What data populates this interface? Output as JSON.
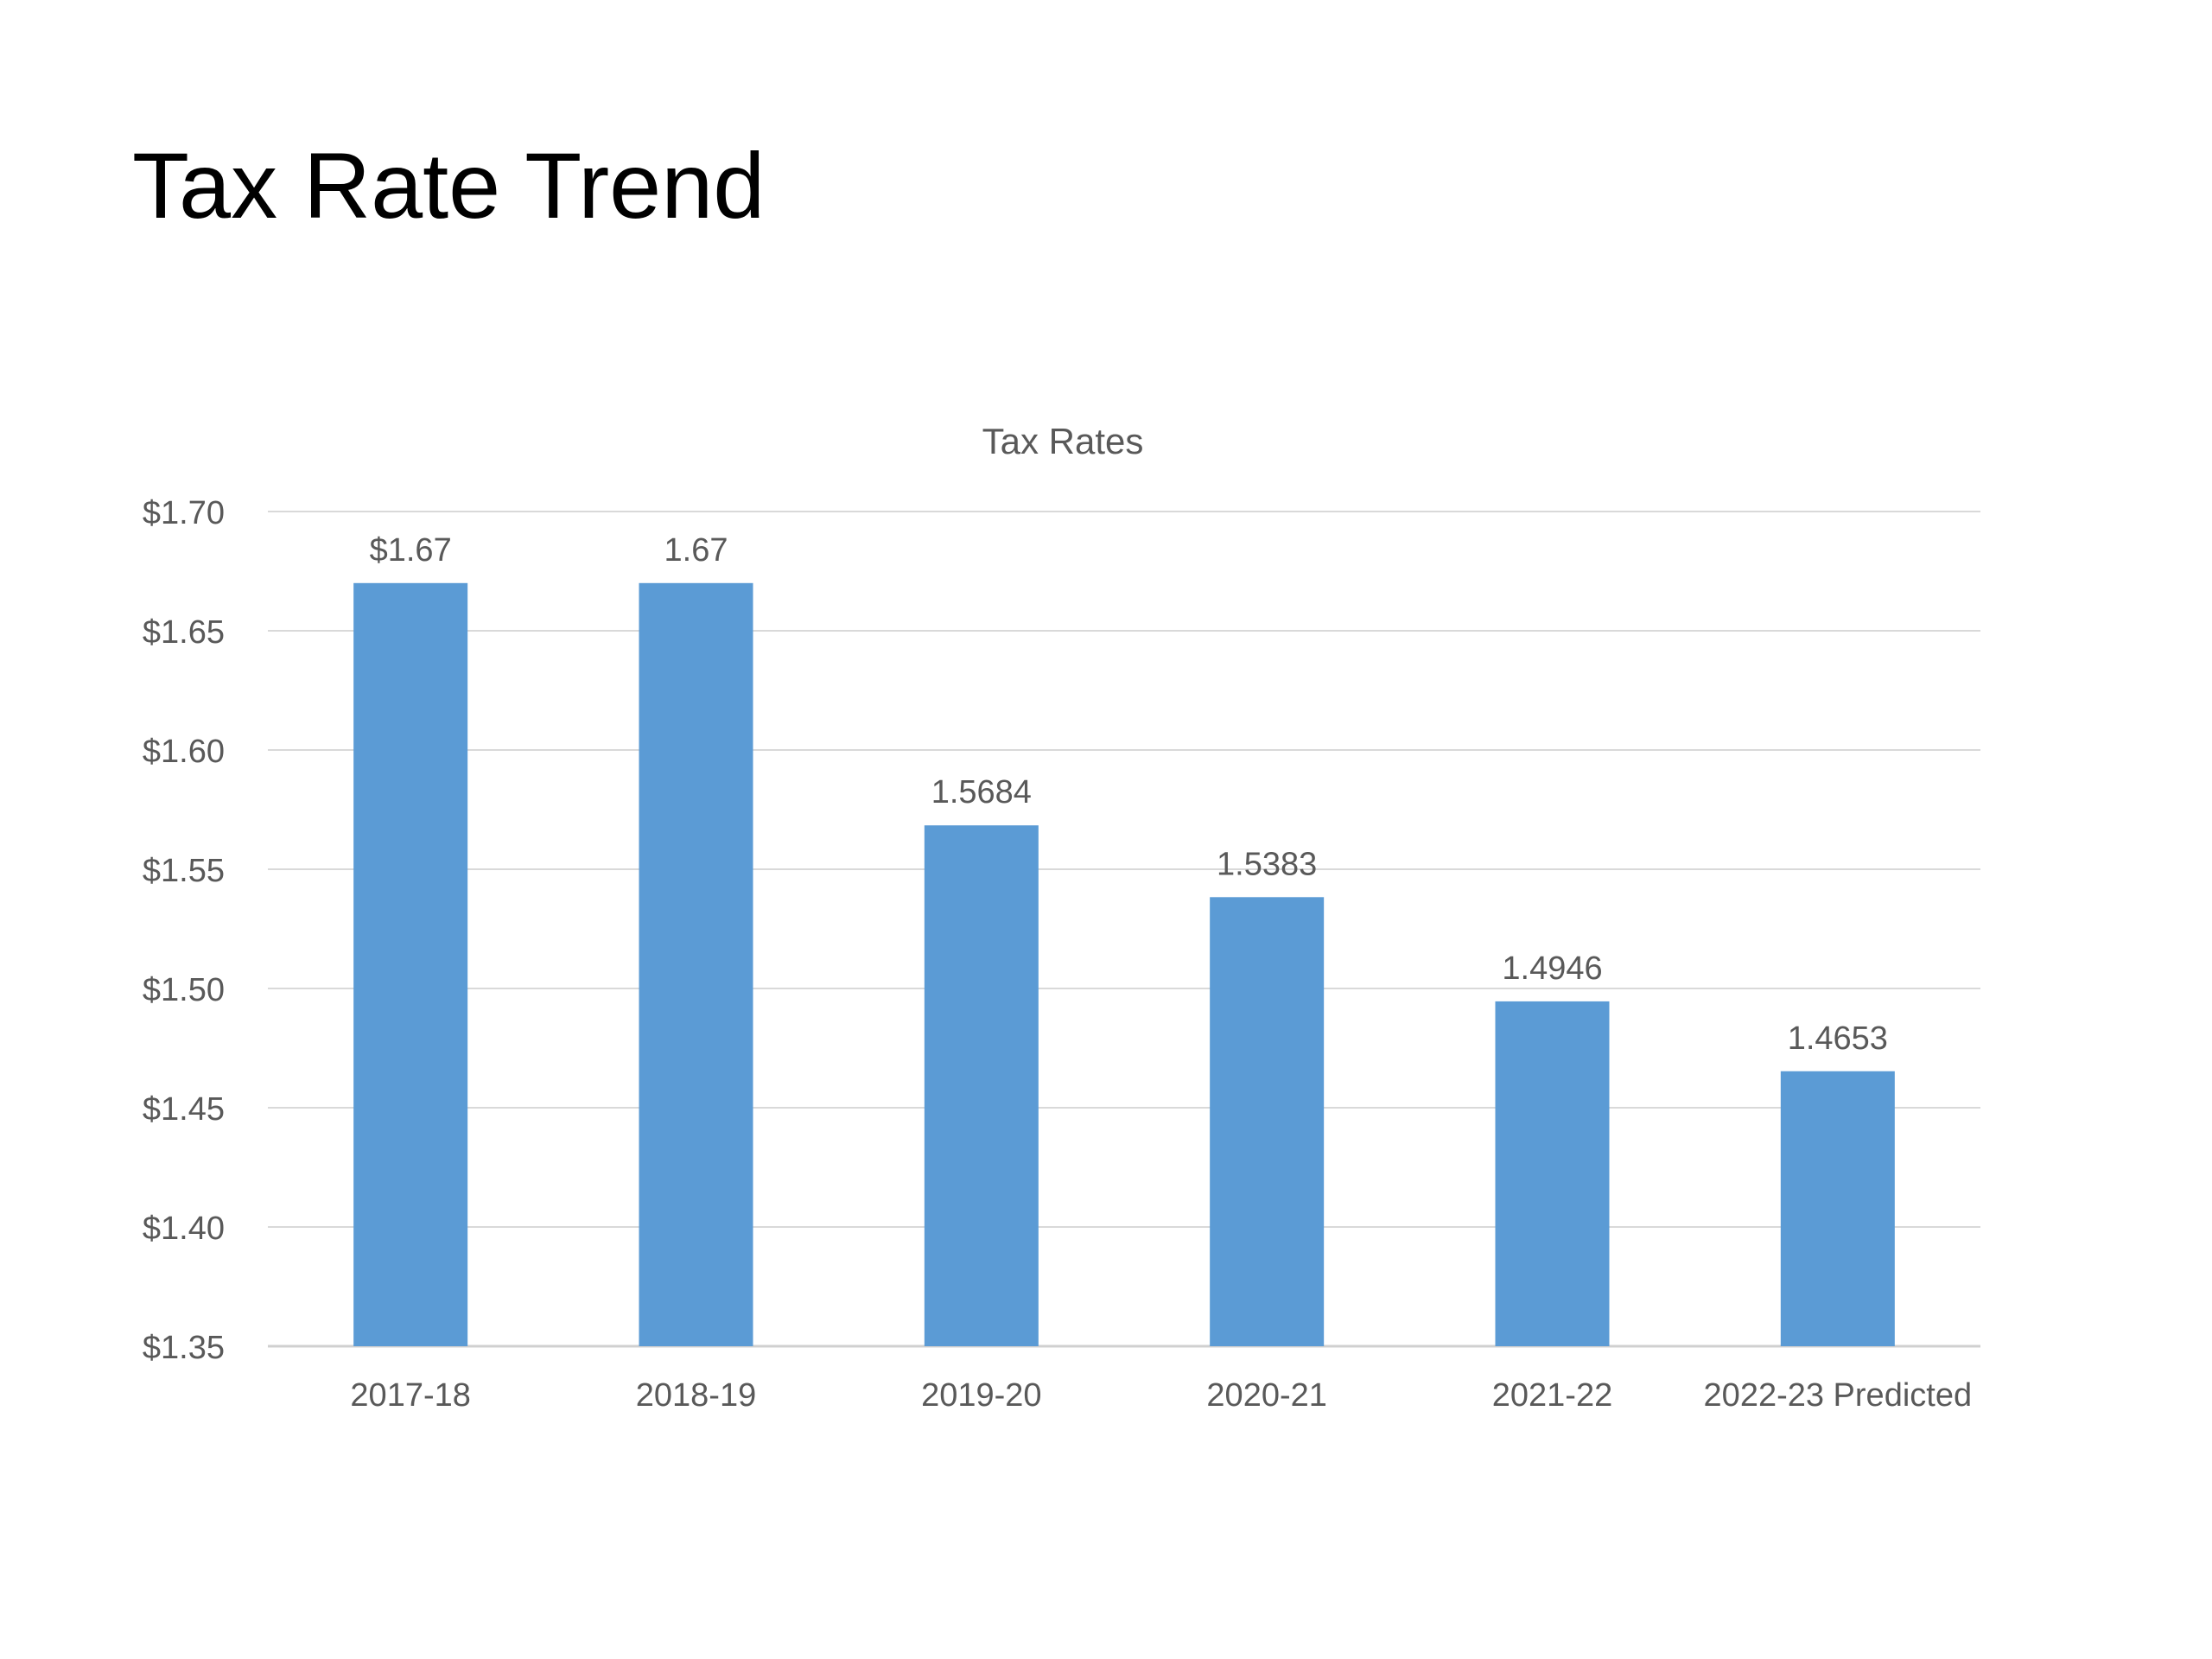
{
  "slide": {
    "title": "Tax Rate Trend"
  },
  "chart_data": {
    "type": "bar",
    "title": "Tax Rates",
    "xlabel": "",
    "ylabel": "",
    "categories": [
      "2017-18",
      "2018-19",
      "2019-20",
      "2020-21",
      "2021-22",
      "2022-23 Predicted"
    ],
    "values": [
      1.67,
      1.67,
      1.5684,
      1.5383,
      1.4946,
      1.4653
    ],
    "data_labels": [
      "$1.67",
      "1.67",
      "1.5684",
      "1.5383",
      "1.4946",
      "1.4653"
    ],
    "ylim": [
      1.35,
      1.7
    ],
    "yticks": [
      1.35,
      1.4,
      1.45,
      1.5,
      1.55,
      1.6,
      1.65,
      1.7
    ],
    "ytick_labels": [
      "$1.35",
      "$1.40",
      "$1.45",
      "$1.50",
      "$1.55",
      "$1.60",
      "$1.65",
      "$1.70"
    ],
    "grid": true,
    "legend": "none",
    "colors": {
      "bar": "#5b9bd5",
      "gridline": "#d9d9d9",
      "text": "#595959"
    }
  }
}
